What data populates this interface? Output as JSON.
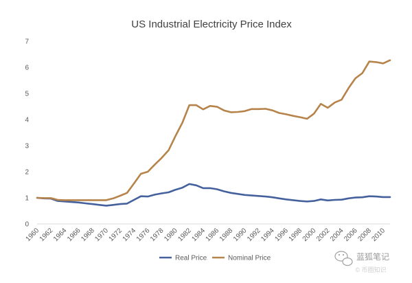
{
  "chart_data": {
    "type": "line",
    "title": "US Industrial Electricity Price Index",
    "xlabel": "",
    "ylabel": "",
    "ylim": [
      0,
      7
    ],
    "yticks": [
      "0",
      "1",
      "2",
      "3",
      "4",
      "5",
      "6",
      "7"
    ],
    "xlim": [
      1960,
      2011
    ],
    "xticks": [
      "1960",
      "1962",
      "1964",
      "1966",
      "1968",
      "1970",
      "1972",
      "1974",
      "1976",
      "1978",
      "1980",
      "1982",
      "1984",
      "1986",
      "1988",
      "1990",
      "1992",
      "1994",
      "1996",
      "1998",
      "2000",
      "2002",
      "2004",
      "2006",
      "2008",
      "2010"
    ],
    "grid": false,
    "legend_position": "bottom",
    "series": [
      {
        "name": "Real Price",
        "color": "#44619d",
        "x": [
          1960,
          1961,
          1962,
          1963,
          1964,
          1965,
          1966,
          1967,
          1968,
          1969,
          1970,
          1971,
          1972,
          1973,
          1974,
          1975,
          1976,
          1977,
          1978,
          1979,
          1980,
          1981,
          1982,
          1983,
          1984,
          1985,
          1986,
          1987,
          1988,
          1989,
          1990,
          1991,
          1992,
          1993,
          1994,
          1995,
          1996,
          1997,
          1998,
          1999,
          2000,
          2001,
          2002,
          2003,
          2004,
          2005,
          2006,
          2007,
          2008,
          2009,
          2010,
          2011
        ],
        "y": [
          1.0,
          0.98,
          0.97,
          0.88,
          0.86,
          0.84,
          0.82,
          0.79,
          0.76,
          0.73,
          0.7,
          0.73,
          0.76,
          0.78,
          0.92,
          1.06,
          1.05,
          1.12,
          1.17,
          1.21,
          1.31,
          1.39,
          1.53,
          1.48,
          1.37,
          1.37,
          1.33,
          1.25,
          1.19,
          1.15,
          1.11,
          1.09,
          1.07,
          1.05,
          1.02,
          0.98,
          0.94,
          0.91,
          0.88,
          0.86,
          0.88,
          0.94,
          0.9,
          0.92,
          0.93,
          0.98,
          1.01,
          1.02,
          1.06,
          1.05,
          1.03,
          1.03
        ]
      },
      {
        "name": "Nominal Price",
        "color": "#b6834b",
        "x": [
          1960,
          1961,
          1962,
          1963,
          1964,
          1965,
          1966,
          1967,
          1968,
          1969,
          1970,
          1971,
          1972,
          1973,
          1974,
          1975,
          1976,
          1977,
          1978,
          1979,
          1980,
          1981,
          1982,
          1983,
          1984,
          1985,
          1986,
          1987,
          1988,
          1989,
          1990,
          1991,
          1992,
          1993,
          1994,
          1995,
          1996,
          1997,
          1998,
          1999,
          2000,
          2001,
          2002,
          2003,
          2004,
          2005,
          2006,
          2007,
          2008,
          2009,
          2010,
          2011
        ],
        "y": [
          1.0,
          0.99,
          0.99,
          0.92,
          0.91,
          0.91,
          0.91,
          0.91,
          0.91,
          0.91,
          0.91,
          0.98,
          1.08,
          1.19,
          1.55,
          1.92,
          2.0,
          2.27,
          2.53,
          2.82,
          3.37,
          3.88,
          4.55,
          4.55,
          4.39,
          4.52,
          4.49,
          4.35,
          4.28,
          4.29,
          4.32,
          4.4,
          4.4,
          4.41,
          4.35,
          4.25,
          4.2,
          4.14,
          4.09,
          4.03,
          4.22,
          4.6,
          4.45,
          4.65,
          4.76,
          5.2,
          5.58,
          5.78,
          6.22,
          6.2,
          6.15,
          6.27
        ]
      }
    ]
  },
  "watermark": {
    "line1": "蓝狐笔记",
    "line2": "© 币圈知识"
  }
}
